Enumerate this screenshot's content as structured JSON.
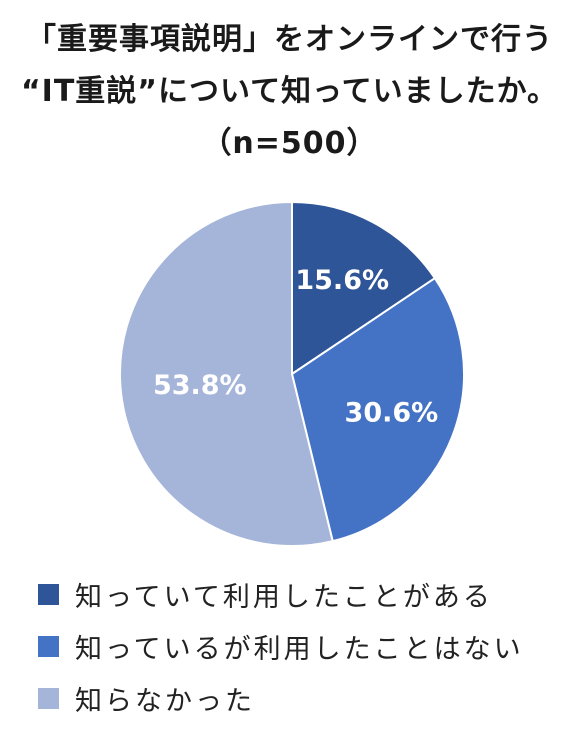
{
  "chart_data": {
    "type": "pie",
    "title_lines": [
      "「重要事項説明」をオンラインで行う",
      "“IT重説”について知っていましたか。",
      "（n=500）"
    ],
    "slices": [
      {
        "label": "知っていて利用したことがある",
        "value": 15.6,
        "value_label": "15.6%",
        "color": "#2e5597"
      },
      {
        "label": "知っているが利用したことはない",
        "value": 30.6,
        "value_label": "30.6%",
        "color": "#4472c4"
      },
      {
        "label": "知らなかった",
        "value": 53.8,
        "value_label": "53.8%",
        "color": "#a5b4d9"
      }
    ],
    "legend_position": "bottom-left"
  }
}
